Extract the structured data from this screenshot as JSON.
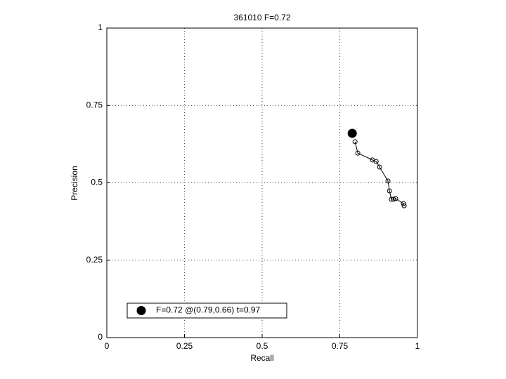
{
  "chart_data": {
    "type": "line",
    "title": "361010 F=0.72",
    "xlabel": "Recall",
    "ylabel": "Precision",
    "xlim": [
      0,
      1
    ],
    "ylim": [
      0,
      1
    ],
    "xticks": [
      0,
      0.25,
      0.5,
      0.75,
      1
    ],
    "yticks": [
      0,
      0.25,
      0.5,
      0.75,
      1
    ],
    "grid": true,
    "legend": "lower left",
    "series": [
      {
        "color": "#000000",
        "marker": "o",
        "x": [
          0.799,
          0.808,
          0.855,
          0.867,
          0.878,
          0.905,
          0.91,
          0.916,
          0.923,
          0.93,
          0.955,
          0.957
        ],
        "values": [
          0.633,
          0.596,
          0.574,
          0.569,
          0.551,
          0.506,
          0.474,
          0.447,
          0.447,
          0.449,
          0.433,
          0.426
        ]
      },
      {
        "name": "F=0.72 @(0.79,0.66) t=0.97",
        "color": "#000000",
        "marker": "o",
        "marker_filled": true,
        "x": [
          0.79
        ],
        "values": [
          0.66
        ]
      }
    ]
  }
}
